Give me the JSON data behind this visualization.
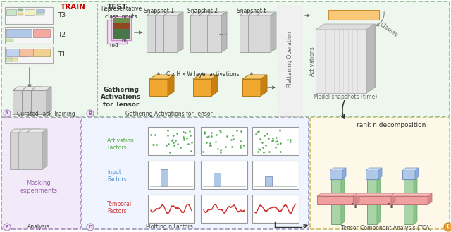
{
  "bg_color": "#ffffff",
  "top_section_bg": "#eef7ee",
  "top_section_border": "#88bb88",
  "bottom_left_bg": "#f2eaf8",
  "bottom_left_border": "#aa88bb",
  "bottom_mid_bg": "#f8f8ff",
  "bottom_mid_border": "#aaaacc",
  "bottom_right_bg": "#fdf8e8",
  "bottom_right_border": "#ccbb66",
  "train_color": "#cc0000",
  "test_color": "#333333",
  "label_A": "Curated Task Training",
  "label_B": "Gathering\nActivations\nfor Tensor",
  "label_C": "Tensor Component Analysis (TCA)",
  "label_D": "Plotting n Factors",
  "label_E": "Analysis",
  "snapshot1": "Snapshot 1",
  "snapshot2": "Snapshot 2",
  "snapshott": "Snapshot t",
  "rep_class": "Representative\nclass inputs",
  "layer_act": "C x H x W layer activations",
  "flatten_op": "Flattening Operation",
  "activations": "Activations",
  "model_snap": "Model snapshots (time)",
  "classes": "Classes",
  "rank_n": "rank n decomposition",
  "act_factors": "Activation\nFactors",
  "input_factors": "Input\nFactors",
  "temporal_factors": "Temporal\nFactors",
  "masking": "Masking\nexperiments",
  "gray_slab": "#d8d8d8",
  "orange_cube": "#f0a830",
  "orange_cube_top": "#f8c870",
  "orange_cube_right": "#c88010",
  "blue_bar": "#b0c8e8",
  "green_bar": "#a8d4a8",
  "pink_bar": "#f0a0a0",
  "dot_green": "#55aa55",
  "line_red": "#cc3333",
  "tensor_orange": "#f0a830",
  "tensor_lavender": "#e8d8f0",
  "tensor_white": "#f0f0f0"
}
